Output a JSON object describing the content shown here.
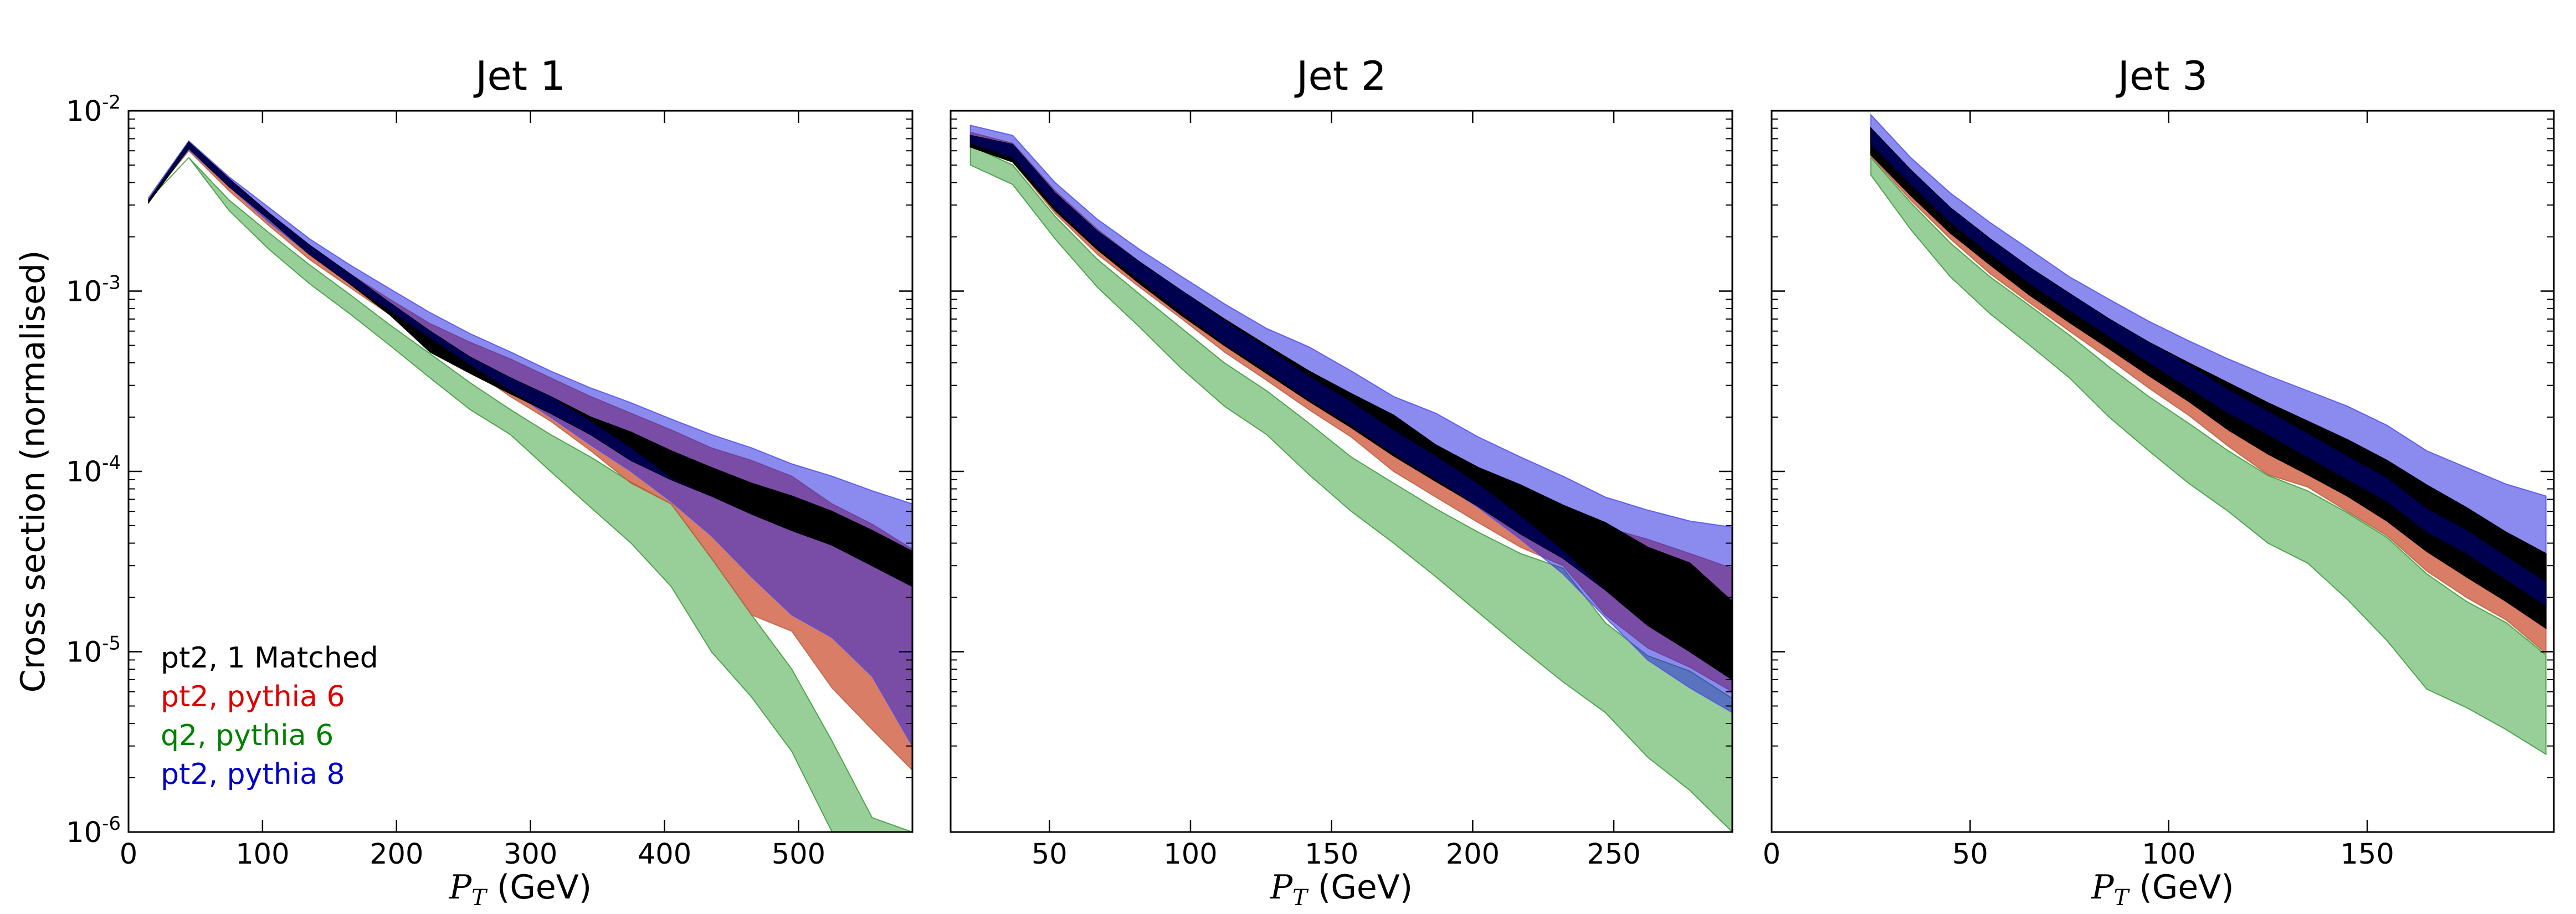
{
  "chart_data": {
    "type": "area",
    "ylabel": "Cross section (normalised)",
    "yscale": "log",
    "ylim": [
      1e-06,
      0.01
    ],
    "ytick_labels": [
      {
        "base": "10",
        "exp": "-2"
      },
      {
        "base": "10",
        "exp": "-3"
      },
      {
        "base": "10",
        "exp": "-4"
      },
      {
        "base": "10",
        "exp": "-5"
      },
      {
        "base": "10",
        "exp": "-6"
      }
    ],
    "xlabel_var": "P",
    "xlabel_sub": "T",
    "xlabel_unit": " (GeV)",
    "legend": [
      {
        "label": "pt2, 1 Matched",
        "color": "#000000"
      },
      {
        "label": "pt2, pythia 6",
        "color": "#dd0000"
      },
      {
        "label": "q2, pythia 6",
        "color": "#008000"
      },
      {
        "label": "pt2, pythia 8",
        "color": "#0000cc"
      }
    ],
    "band_colors": {
      "q2_pythia6": "#96cd96",
      "pt2_pythia6": "#c8765a",
      "pt2_pythia8": "#7878e6",
      "pt2_1matched": "#000000",
      "overlap_p6_p8": "#9d56c8",
      "overlap_1m_p8": "#000064"
    },
    "panels": [
      {
        "title": "Jet 1",
        "xlim": [
          0,
          585
        ],
        "xticks": [
          0,
          100,
          200,
          300,
          400,
          500
        ],
        "x": [
          15,
          45,
          75,
          105,
          135,
          165,
          195,
          225,
          255,
          285,
          315,
          345,
          375,
          405,
          435,
          465,
          495,
          525,
          555,
          585
        ],
        "series": [
          {
            "key": "q2_pythia6",
            "name": "q2, pythia 6",
            "lower": [
              0.0032,
              0.0055,
              0.0028,
              0.0017,
              0.0011,
              0.00075,
              0.0005,
              0.00033,
              0.00022,
              0.00016,
              0.0001,
              6.3e-05,
              4e-05,
              2.3e-05,
              1e-05,
              5.6e-06,
              2.8e-06,
              1e-06,
              1e-06,
              1e-06
            ],
            "upper": [
              0.0032,
              0.0055,
              0.0032,
              0.0021,
              0.0014,
              0.00096,
              0.00065,
              0.00045,
              0.00031,
              0.00022,
              0.00016,
              0.00012,
              8.7e-05,
              6.6e-05,
              3.3e-05,
              1.6e-05,
              8e-06,
              3.2e-06,
              1.2e-06,
              1e-06
            ]
          },
          {
            "key": "pt2_pythia6",
            "name": "pt2, pythia 6",
            "lower": [
              0.0032,
              0.006,
              0.0036,
              0.0023,
              0.0015,
              0.00105,
              0.00074,
              0.00052,
              0.00037,
              0.00026,
              0.00019,
              0.00013,
              8.6e-05,
              6.6e-05,
              3.3e-05,
              1.6e-05,
              1.3e-05,
              6.3e-06,
              3.7e-06,
              2.2e-06
            ],
            "upper": [
              0.0032,
              0.0063,
              0.004,
              0.0026,
              0.00175,
              0.00125,
              0.0009,
              0.00066,
              0.00052,
              0.00042,
              0.00033,
              0.00026,
              0.00021,
              0.00017,
              0.000135,
              0.000115,
              9.4e-05,
              6.6e-05,
              5.1e-05,
              3.7e-05
            ]
          },
          {
            "key": "pt2_pythia8",
            "name": "pt2, pythia 8",
            "lower": [
              0.0032,
              0.0061,
              0.0038,
              0.0024,
              0.0016,
              0.0011,
              0.00078,
              0.00055,
              0.00039,
              0.00028,
              0.0002,
              0.00014,
              0.0001,
              6.8e-05,
              4.4e-05,
              2.6e-05,
              1.6e-05,
              1.2e-05,
              7.3e-06,
              3e-06
            ],
            "upper": [
              0.0033,
              0.0068,
              0.0043,
              0.0029,
              0.00195,
              0.0014,
              0.00103,
              0.00076,
              0.00058,
              0.00046,
              0.00036,
              0.00029,
              0.00024,
              0.000195,
              0.00016,
              0.000135,
              0.00011,
              9.4e-05,
              7.8e-05,
              6.6e-05
            ]
          },
          {
            "key": "pt2_1matched",
            "name": "pt2, 1 Matched",
            "lower": [
              0.0031,
              0.0062,
              0.0038,
              0.0025,
              0.0016,
              0.0011,
              0.00074,
              0.00046,
              0.00035,
              0.00027,
              0.00021,
              0.00016,
              0.000115,
              9e-05,
              7.3e-05,
              5.8e-05,
              4.7e-05,
              3.9e-05,
              3e-05,
              2.3e-05
            ],
            "upper": [
              0.0032,
              0.0067,
              0.0042,
              0.0027,
              0.0018,
              0.00125,
              0.00086,
              0.0006,
              0.00043,
              0.00033,
              0.00026,
              0.0002,
              0.000165,
              0.00013,
              0.000105,
              8.6e-05,
              7.3e-05,
              6e-05,
              4.7e-05,
              3.6e-05
            ]
          }
        ]
      },
      {
        "title": "Jet 2",
        "xlim": [
          15,
          292
        ],
        "xticks": [
          50,
          100,
          150,
          200,
          250
        ],
        "x": [
          22,
          37,
          52,
          67,
          82,
          97,
          112,
          127,
          142,
          157,
          172,
          187,
          202,
          217,
          232,
          247,
          262,
          277,
          292
        ],
        "series": [
          {
            "key": "q2_pythia6",
            "name": "q2, pythia 6",
            "lower": [
              0.005,
              0.0039,
              0.00195,
              0.00105,
              0.00063,
              0.00037,
              0.00023,
              0.00016,
              9.6e-05,
              6e-05,
              4e-05,
              2.6e-05,
              1.65e-05,
              1.05e-05,
              6.8e-06,
              4.6e-06,
              2.6e-06,
              1.7e-06,
              1e-06
            ],
            "upper": [
              0.0064,
              0.005,
              0.0026,
              0.0015,
              0.00096,
              0.00062,
              0.0004,
              0.00028,
              0.000185,
              0.00012,
              8.6e-05,
              6.2e-05,
              4.6e-05,
              3.5e-05,
              2.9e-05,
              1.45e-05,
              9.5e-06,
              7.8e-06,
              5.5e-06
            ]
          },
          {
            "key": "pt2_pythia6",
            "name": "pt2, pythia 6",
            "lower": [
              0.0063,
              0.0052,
              0.0027,
              0.0016,
              0.00105,
              0.0007,
              0.00046,
              0.00032,
              0.00022,
              0.000155,
              0.0001,
              7.2e-05,
              5.2e-05,
              3.8e-05,
              3e-05,
              1.6e-05,
              1.05e-05,
              8.2e-06,
              6e-06
            ],
            "upper": [
              0.0076,
              0.0066,
              0.0036,
              0.0022,
              0.00145,
              0.00098,
              0.00069,
              0.00049,
              0.00035,
              0.00025,
              0.000185,
              0.00014,
              0.000105,
              8.2e-05,
              6.3e-05,
              4.9e-05,
              4.2e-05,
              3.5e-05,
              2.9e-05
            ]
          },
          {
            "key": "pt2_pythia8",
            "name": "pt2, pythia 8",
            "lower": [
              0.0066,
              0.0055,
              0.0029,
              0.00175,
              0.00115,
              0.00076,
              0.00051,
              0.00036,
              0.00025,
              0.00018,
              0.000125,
              9e-05,
              6.3e-05,
              4.2e-05,
              2.7e-05,
              1.55e-05,
              9e-06,
              6.3e-06,
              4.6e-06
            ],
            "upper": [
              0.0083,
              0.0073,
              0.004,
              0.0025,
              0.0017,
              0.0012,
              0.00085,
              0.00062,
              0.00049,
              0.00036,
              0.00026,
              0.00021,
              0.000155,
              0.00012,
              9.4e-05,
              7.2e-05,
              6.1e-05,
              5.3e-05,
              4.9e-05
            ]
          },
          {
            "key": "pt2_1matched",
            "name": "pt2, 1 Matched",
            "lower": [
              0.0063,
              0.0052,
              0.0028,
              0.0017,
              0.0011,
              0.00073,
              0.0005,
              0.00035,
              0.000245,
              0.000175,
              0.000122,
              8.8e-05,
              6.4e-05,
              4.5e-05,
              3.3e-05,
              2.2e-05,
              1.4e-05,
              1e-05,
              7e-06
            ],
            "upper": [
              0.0073,
              0.0065,
              0.0035,
              0.00215,
              0.00145,
              0.001,
              0.0007,
              0.0005,
              0.00036,
              0.00027,
              0.000205,
              0.00014,
              0.000105,
              8.4e-05,
              6.5e-05,
              5.2e-05,
              3.8e-05,
              3.1e-05,
              1.9e-05
            ]
          }
        ]
      },
      {
        "title": "Jet 3",
        "xlim": [
          0,
          197
        ],
        "xticks": [
          0,
          50,
          100,
          150
        ],
        "x": [
          25,
          35,
          45,
          55,
          65,
          75,
          85,
          95,
          105,
          115,
          125,
          135,
          145,
          155,
          165,
          175,
          185,
          195
        ],
        "series": [
          {
            "key": "q2_pythia6",
            "name": "q2, pythia 6",
            "lower": [
              0.0044,
              0.0022,
              0.0012,
              0.00075,
              0.0005,
              0.00033,
              0.0002,
              0.00013,
              8.6e-05,
              6e-05,
              4e-05,
              3.1e-05,
              1.95e-05,
              1.15e-05,
              6.2e-06,
              4.9e-06,
              3.7e-06,
              2.7e-06
            ],
            "upper": [
              0.0055,
              0.0031,
              0.00185,
              0.0012,
              0.00083,
              0.00057,
              0.00038,
              0.00026,
              0.000185,
              0.00013,
              9.5e-05,
              7.8e-05,
              5.9e-05,
              4.3e-05,
              2.7e-05,
              1.9e-05,
              1.45e-05,
              9.6e-06
            ]
          },
          {
            "key": "pt2_pythia6",
            "name": "pt2, pythia 6",
            "lower": [
              0.0056,
              0.0032,
              0.00195,
              0.00125,
              0.00086,
              0.0006,
              0.00042,
              0.00029,
              0.000205,
              0.000138,
              9.6e-05,
              8.2e-05,
              6e-05,
              4.4e-05,
              2.8e-05,
              2e-05,
              1.5e-05,
              9.8e-06
            ]
          },
          {
            "key": "pt2_pythia8",
            "name": "pt2, pythia 8",
            "lower": [
              0.0065,
              0.0039,
              0.0024,
              0.0016,
              0.0011,
              0.00078,
              0.00056,
              0.0004,
              0.00029,
              0.00021,
              0.00016,
              0.00012,
              9e-05,
              6.8e-05,
              4.6e-05,
              3.5e-05,
              2.5e-05,
              1.8e-05
            ],
            "upper": [
              0.0095,
              0.0055,
              0.0035,
              0.0024,
              0.0017,
              0.0012,
              0.0009,
              0.00068,
              0.00053,
              0.00042,
              0.00034,
              0.00028,
              0.00023,
              0.00018,
              0.00013,
              0.000105,
              8.5e-05,
              7.3e-05
            ]
          },
          {
            "key": "pt2_1matched",
            "name": "pt2, 1 Matched",
            "lower": [
              0.0057,
              0.0034,
              0.0021,
              0.0014,
              0.00095,
              0.00067,
              0.00048,
              0.00034,
              0.000245,
              0.00017,
              0.000125,
              9.6e-05,
              7.3e-05,
              5.3e-05,
              3.6e-05,
              2.6e-05,
              1.9e-05,
              1.35e-05
            ],
            "upper": [
              0.008,
              0.0047,
              0.0029,
              0.00195,
              0.00135,
              0.00097,
              0.0007,
              0.00052,
              0.0004,
              0.00031,
              0.00024,
              0.00019,
              0.00015,
              0.000115,
              8.4e-05,
              6.3e-05,
              4.6e-05,
              3.5e-05
            ]
          }
        ]
      }
    ]
  }
}
